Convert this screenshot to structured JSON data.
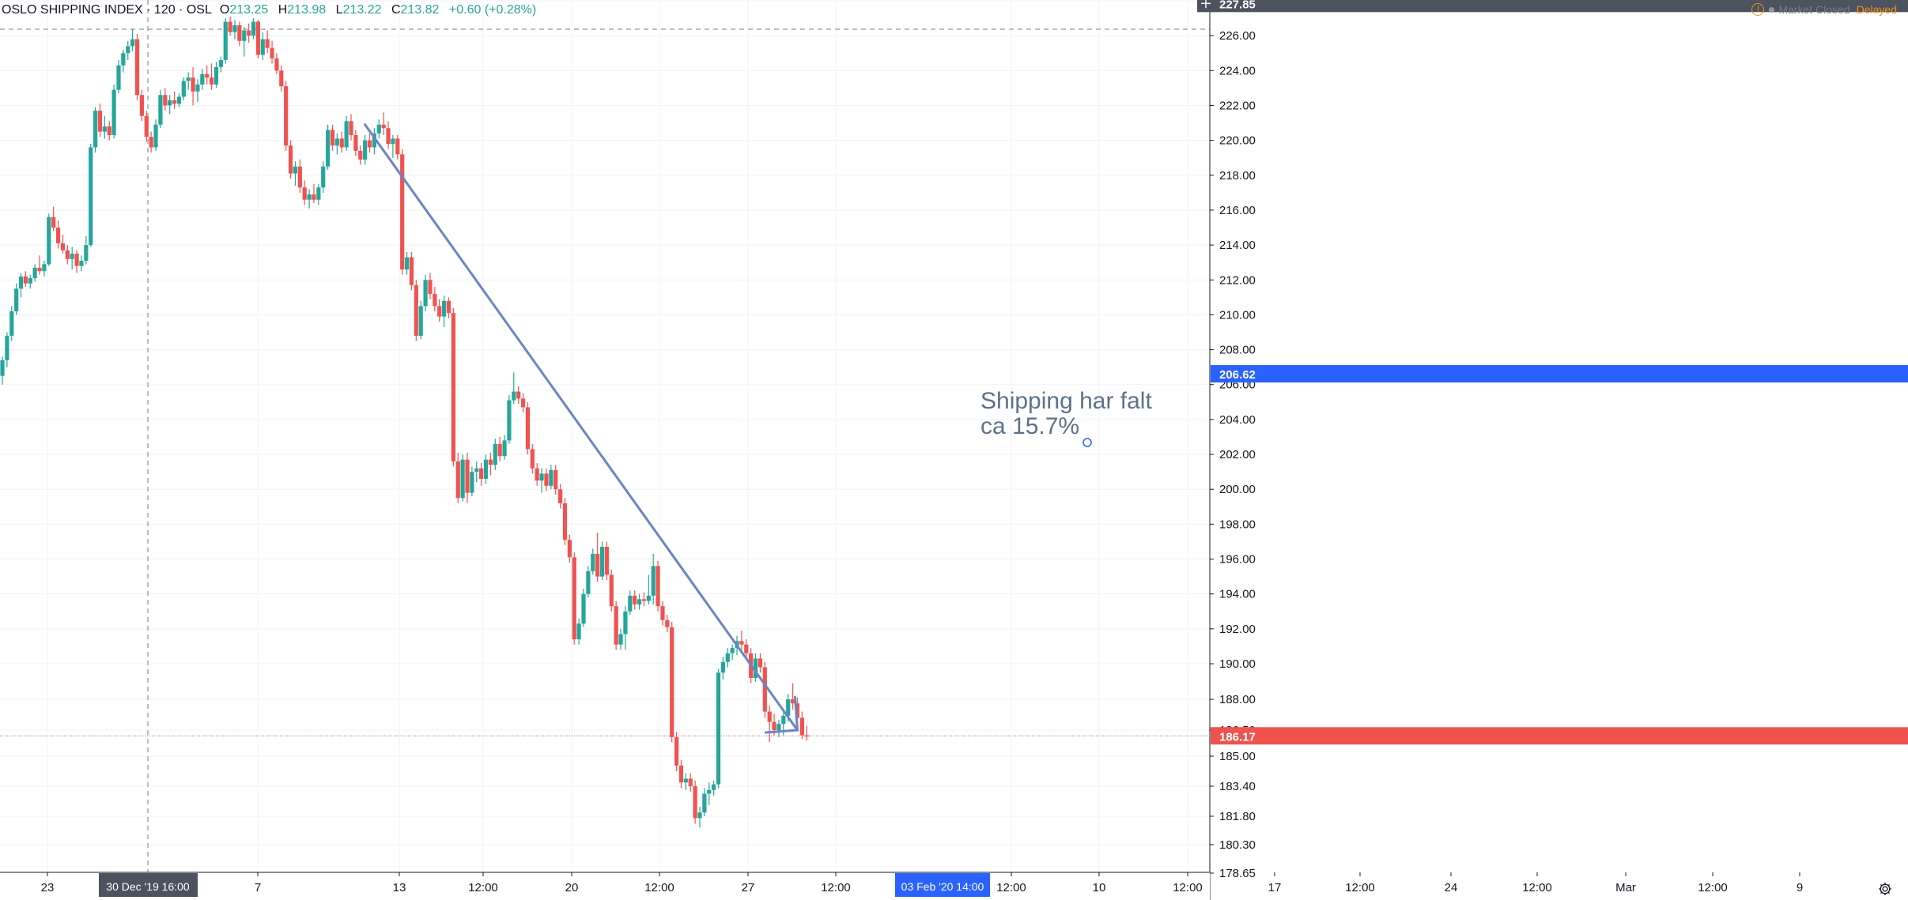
{
  "header": {
    "symbol": "OSLO SHIPPING INDEX · 120 · OSL",
    "ohlc": {
      "o_label": "O",
      "o": "213.25",
      "h_label": "H",
      "h": "213.98",
      "l_label": "L",
      "l": "213.22",
      "c_label": "C",
      "c": "213.82",
      "change": "+0.60 (+0.28%)"
    },
    "status_closed": "Market Closed",
    "status_delayed": "Delayed"
  },
  "colors": {
    "up": "#26a69a",
    "down": "#ef5350",
    "trendline": "#6b84c4",
    "annotation_text": "#5d7289",
    "last_price": "#ef5350",
    "crosshair_label": "#2962ff",
    "axis_label_bg": "#4c525e"
  },
  "icons": {
    "warning": "warning-icon",
    "settings": "gear-icon",
    "crosshair": "plus-icon"
  },
  "chart_data": {
    "type": "candlestick",
    "title": "OSLO SHIPPING INDEX · 120 · OSL",
    "y_axis": {
      "ticks": [
        "178.65",
        "180.30",
        "181.80",
        "183.40",
        "185.00",
        "186.50",
        "188.00",
        "190.00",
        "192.00",
        "194.00",
        "196.00",
        "198.00",
        "200.00",
        "202.00",
        "204.00",
        "206.00",
        "208.00",
        "210.00",
        "212.00",
        "214.00",
        "216.00",
        "218.00",
        "220.00",
        "222.00",
        "224.00",
        "226.00",
        "228.00"
      ],
      "ylim": [
        178.65,
        228.0
      ],
      "price_labels": {
        "crosshair": "227.85",
        "level": "206.62",
        "last": "186.17"
      }
    },
    "x_axis": {
      "ticks": [
        "23",
        "7",
        "13",
        "12:00",
        "20",
        "12:00",
        "27",
        "12:00",
        "12:00",
        "10",
        "12:00",
        "17",
        "12:00",
        "24",
        "12:00",
        "Mar",
        "12:00",
        "9"
      ],
      "crosshair_label": "30 Dec '19   16:00",
      "highlight_label": "03 Feb '20   14:00"
    },
    "candles": [
      {
        "o": 206.5,
        "h": 207.6,
        "l": 206.0,
        "c": 207.4
      },
      {
        "o": 207.4,
        "h": 209.0,
        "l": 207.0,
        "c": 208.8
      },
      {
        "o": 208.8,
        "h": 210.5,
        "l": 208.5,
        "c": 210.2
      },
      {
        "o": 210.2,
        "h": 211.8,
        "l": 210.0,
        "c": 211.5
      },
      {
        "o": 211.5,
        "h": 212.4,
        "l": 211.0,
        "c": 212.2
      },
      {
        "o": 212.2,
        "h": 212.5,
        "l": 211.6,
        "c": 211.8
      },
      {
        "o": 211.8,
        "h": 212.3,
        "l": 211.5,
        "c": 212.1
      },
      {
        "o": 212.1,
        "h": 212.9,
        "l": 211.9,
        "c": 212.7
      },
      {
        "o": 212.7,
        "h": 213.4,
        "l": 212.3,
        "c": 212.5
      },
      {
        "o": 212.5,
        "h": 213.1,
        "l": 212.2,
        "c": 212.9
      },
      {
        "o": 212.9,
        "h": 215.8,
        "l": 212.8,
        "c": 215.6
      },
      {
        "o": 215.6,
        "h": 216.2,
        "l": 214.8,
        "c": 215.0
      },
      {
        "o": 215.0,
        "h": 215.4,
        "l": 213.8,
        "c": 214.1
      },
      {
        "o": 214.1,
        "h": 214.6,
        "l": 213.5,
        "c": 213.7
      },
      {
        "o": 213.7,
        "h": 214.0,
        "l": 212.9,
        "c": 213.2
      },
      {
        "o": 213.2,
        "h": 213.9,
        "l": 212.6,
        "c": 213.5
      },
      {
        "o": 213.5,
        "h": 213.7,
        "l": 212.4,
        "c": 212.8
      },
      {
        "o": 212.8,
        "h": 213.4,
        "l": 212.5,
        "c": 213.1
      },
      {
        "o": 213.1,
        "h": 214.5,
        "l": 212.9,
        "c": 214.0
      },
      {
        "o": 214.0,
        "h": 219.8,
        "l": 213.9,
        "c": 219.6
      },
      {
        "o": 219.6,
        "h": 221.9,
        "l": 219.3,
        "c": 221.7
      },
      {
        "o": 221.7,
        "h": 222.1,
        "l": 220.2,
        "c": 220.5
      },
      {
        "o": 220.5,
        "h": 221.4,
        "l": 220.1,
        "c": 220.8
      },
      {
        "o": 220.8,
        "h": 221.1,
        "l": 220.0,
        "c": 220.3
      },
      {
        "o": 220.3,
        "h": 223.2,
        "l": 220.1,
        "c": 222.9
      },
      {
        "o": 222.9,
        "h": 224.6,
        "l": 222.7,
        "c": 224.3
      },
      {
        "o": 224.3,
        "h": 225.2,
        "l": 223.9,
        "c": 225.0
      },
      {
        "o": 225.0,
        "h": 225.7,
        "l": 224.6,
        "c": 225.4
      },
      {
        "o": 225.4,
        "h": 226.4,
        "l": 225.1,
        "c": 225.8
      },
      {
        "o": 225.8,
        "h": 226.1,
        "l": 222.3,
        "c": 222.6
      },
      {
        "o": 222.6,
        "h": 222.9,
        "l": 221.1,
        "c": 221.4
      },
      {
        "o": 221.4,
        "h": 221.7,
        "l": 219.9,
        "c": 220.2
      },
      {
        "o": 220.2,
        "h": 220.5,
        "l": 219.3,
        "c": 219.6
      },
      {
        "o": 219.6,
        "h": 221.2,
        "l": 219.4,
        "c": 220.9
      },
      {
        "o": 220.9,
        "h": 222.9,
        "l": 220.7,
        "c": 222.6
      },
      {
        "o": 222.6,
        "h": 223.0,
        "l": 221.7,
        "c": 222.0
      },
      {
        "o": 222.0,
        "h": 222.6,
        "l": 221.5,
        "c": 222.3
      },
      {
        "o": 222.3,
        "h": 222.8,
        "l": 221.8,
        "c": 222.1
      },
      {
        "o": 222.1,
        "h": 222.7,
        "l": 221.9,
        "c": 222.5
      },
      {
        "o": 222.5,
        "h": 223.6,
        "l": 222.3,
        "c": 223.4
      },
      {
        "o": 223.4,
        "h": 223.9,
        "l": 222.9,
        "c": 223.6
      },
      {
        "o": 223.6,
        "h": 224.2,
        "l": 222.0,
        "c": 222.8
      },
      {
        "o": 222.8,
        "h": 223.5,
        "l": 222.2,
        "c": 223.2
      },
      {
        "o": 223.2,
        "h": 224.1,
        "l": 222.9,
        "c": 223.8
      },
      {
        "o": 223.8,
        "h": 224.3,
        "l": 223.2,
        "c": 223.6
      },
      {
        "o": 223.6,
        "h": 224.4,
        "l": 222.9,
        "c": 223.2
      },
      {
        "o": 223.2,
        "h": 224.5,
        "l": 223.0,
        "c": 224.2
      },
      {
        "o": 224.2,
        "h": 224.8,
        "l": 223.9,
        "c": 224.6
      },
      {
        "o": 224.6,
        "h": 227.0,
        "l": 224.4,
        "c": 226.8
      },
      {
        "o": 226.8,
        "h": 227.1,
        "l": 226.0,
        "c": 226.2
      },
      {
        "o": 226.2,
        "h": 226.9,
        "l": 225.8,
        "c": 226.6
      },
      {
        "o": 226.6,
        "h": 226.8,
        "l": 225.4,
        "c": 225.7
      },
      {
        "o": 225.7,
        "h": 226.5,
        "l": 224.8,
        "c": 226.3
      },
      {
        "o": 226.3,
        "h": 226.7,
        "l": 225.6,
        "c": 226.0
      },
      {
        "o": 226.0,
        "h": 227.0,
        "l": 225.8,
        "c": 226.8
      },
      {
        "o": 226.8,
        "h": 226.9,
        "l": 224.7,
        "c": 224.9
      },
      {
        "o": 224.9,
        "h": 226.2,
        "l": 224.6,
        "c": 225.8
      },
      {
        "o": 225.8,
        "h": 226.3,
        "l": 225.0,
        "c": 225.3
      },
      {
        "o": 225.3,
        "h": 225.7,
        "l": 224.4,
        "c": 224.7
      },
      {
        "o": 224.7,
        "h": 225.0,
        "l": 223.8,
        "c": 224.0
      },
      {
        "o": 224.0,
        "h": 224.3,
        "l": 222.8,
        "c": 223.1
      },
      {
        "o": 223.1,
        "h": 223.4,
        "l": 219.4,
        "c": 219.7
      },
      {
        "o": 219.7,
        "h": 220.0,
        "l": 217.8,
        "c": 218.1
      },
      {
        "o": 218.1,
        "h": 218.8,
        "l": 217.4,
        "c": 218.5
      },
      {
        "o": 218.5,
        "h": 218.9,
        "l": 217.0,
        "c": 217.3
      },
      {
        "o": 217.3,
        "h": 217.7,
        "l": 216.3,
        "c": 216.6
      },
      {
        "o": 216.6,
        "h": 217.2,
        "l": 216.1,
        "c": 216.9
      },
      {
        "o": 216.9,
        "h": 217.5,
        "l": 216.4,
        "c": 216.6
      },
      {
        "o": 216.6,
        "h": 217.5,
        "l": 216.3,
        "c": 217.3
      },
      {
        "o": 217.3,
        "h": 218.8,
        "l": 217.0,
        "c": 218.5
      },
      {
        "o": 218.5,
        "h": 220.9,
        "l": 218.3,
        "c": 220.6
      },
      {
        "o": 220.6,
        "h": 220.9,
        "l": 219.4,
        "c": 219.7
      },
      {
        "o": 219.7,
        "h": 220.4,
        "l": 219.2,
        "c": 220.1
      },
      {
        "o": 220.1,
        "h": 220.5,
        "l": 219.3,
        "c": 219.6
      },
      {
        "o": 219.6,
        "h": 221.4,
        "l": 219.4,
        "c": 221.1
      },
      {
        "o": 221.1,
        "h": 221.5,
        "l": 220.0,
        "c": 220.3
      },
      {
        "o": 220.3,
        "h": 220.6,
        "l": 219.1,
        "c": 219.4
      },
      {
        "o": 219.4,
        "h": 219.7,
        "l": 218.6,
        "c": 218.9
      },
      {
        "o": 218.9,
        "h": 220.3,
        "l": 218.6,
        "c": 220.0
      },
      {
        "o": 220.0,
        "h": 220.6,
        "l": 219.3,
        "c": 219.6
      },
      {
        "o": 219.6,
        "h": 220.7,
        "l": 219.2,
        "c": 220.4
      },
      {
        "o": 220.4,
        "h": 221.2,
        "l": 220.1,
        "c": 220.9
      },
      {
        "o": 220.9,
        "h": 221.6,
        "l": 220.3,
        "c": 220.7
      },
      {
        "o": 220.7,
        "h": 221.1,
        "l": 219.5,
        "c": 219.8
      },
      {
        "o": 219.8,
        "h": 220.3,
        "l": 219.0,
        "c": 220.1
      },
      {
        "o": 220.1,
        "h": 220.3,
        "l": 218.9,
        "c": 219.2
      },
      {
        "o": 219.2,
        "h": 219.5,
        "l": 212.3,
        "c": 212.6
      },
      {
        "o": 212.6,
        "h": 213.6,
        "l": 212.3,
        "c": 213.3
      },
      {
        "o": 213.3,
        "h": 213.6,
        "l": 211.4,
        "c": 211.7
      },
      {
        "o": 211.7,
        "h": 212.0,
        "l": 208.5,
        "c": 208.8
      },
      {
        "o": 208.8,
        "h": 210.8,
        "l": 208.6,
        "c": 210.5
      },
      {
        "o": 210.5,
        "h": 212.3,
        "l": 210.2,
        "c": 212.0
      },
      {
        "o": 212.0,
        "h": 212.4,
        "l": 210.9,
        "c": 211.2
      },
      {
        "o": 211.2,
        "h": 211.6,
        "l": 210.2,
        "c": 210.5
      },
      {
        "o": 210.5,
        "h": 210.9,
        "l": 209.6,
        "c": 209.9
      },
      {
        "o": 209.9,
        "h": 211.1,
        "l": 209.3,
        "c": 210.8
      },
      {
        "o": 210.8,
        "h": 211.0,
        "l": 209.8,
        "c": 210.1
      },
      {
        "o": 210.1,
        "h": 210.4,
        "l": 201.3,
        "c": 201.6
      },
      {
        "o": 201.6,
        "h": 202.1,
        "l": 199.2,
        "c": 199.5
      },
      {
        "o": 199.5,
        "h": 202.0,
        "l": 199.3,
        "c": 201.7
      },
      {
        "o": 201.7,
        "h": 202.1,
        "l": 199.2,
        "c": 199.8
      },
      {
        "o": 199.8,
        "h": 201.3,
        "l": 199.6,
        "c": 201.0
      },
      {
        "o": 201.0,
        "h": 201.6,
        "l": 200.4,
        "c": 201.2
      },
      {
        "o": 201.2,
        "h": 201.5,
        "l": 200.2,
        "c": 200.6
      },
      {
        "o": 200.6,
        "h": 202.0,
        "l": 200.3,
        "c": 201.7
      },
      {
        "o": 201.7,
        "h": 202.1,
        "l": 200.8,
        "c": 201.4
      },
      {
        "o": 201.4,
        "h": 202.9,
        "l": 201.1,
        "c": 202.6
      },
      {
        "o": 202.6,
        "h": 203.0,
        "l": 201.6,
        "c": 201.9
      },
      {
        "o": 201.9,
        "h": 203.1,
        "l": 201.7,
        "c": 202.8
      },
      {
        "o": 202.8,
        "h": 205.4,
        "l": 202.6,
        "c": 205.1
      },
      {
        "o": 205.1,
        "h": 206.7,
        "l": 204.9,
        "c": 205.6
      },
      {
        "o": 205.6,
        "h": 205.9,
        "l": 204.9,
        "c": 205.2
      },
      {
        "o": 205.2,
        "h": 205.5,
        "l": 204.4,
        "c": 204.7
      },
      {
        "o": 204.7,
        "h": 205.0,
        "l": 202.0,
        "c": 202.3
      },
      {
        "o": 202.3,
        "h": 202.6,
        "l": 200.9,
        "c": 201.2
      },
      {
        "o": 201.2,
        "h": 201.5,
        "l": 200.2,
        "c": 200.5
      },
      {
        "o": 200.5,
        "h": 201.2,
        "l": 199.8,
        "c": 200.9
      },
      {
        "o": 200.9,
        "h": 201.2,
        "l": 199.9,
        "c": 200.2
      },
      {
        "o": 200.2,
        "h": 201.4,
        "l": 200.0,
        "c": 201.1
      },
      {
        "o": 201.1,
        "h": 201.4,
        "l": 199.7,
        "c": 200.0
      },
      {
        "o": 200.0,
        "h": 200.3,
        "l": 198.9,
        "c": 199.2
      },
      {
        "o": 199.2,
        "h": 199.5,
        "l": 196.8,
        "c": 197.1
      },
      {
        "o": 197.1,
        "h": 197.4,
        "l": 195.8,
        "c": 196.1
      },
      {
        "o": 196.1,
        "h": 196.4,
        "l": 191.1,
        "c": 191.4
      },
      {
        "o": 191.4,
        "h": 192.6,
        "l": 191.1,
        "c": 192.3
      },
      {
        "o": 192.3,
        "h": 194.3,
        "l": 192.1,
        "c": 194.0
      },
      {
        "o": 194.0,
        "h": 195.6,
        "l": 193.8,
        "c": 195.3
      },
      {
        "o": 195.3,
        "h": 196.6,
        "l": 195.1,
        "c": 196.3
      },
      {
        "o": 196.3,
        "h": 197.5,
        "l": 194.7,
        "c": 195.0
      },
      {
        "o": 195.0,
        "h": 197.0,
        "l": 194.8,
        "c": 196.7
      },
      {
        "o": 196.7,
        "h": 197.0,
        "l": 194.8,
        "c": 195.1
      },
      {
        "o": 195.1,
        "h": 195.4,
        "l": 193.0,
        "c": 193.3
      },
      {
        "o": 193.3,
        "h": 193.6,
        "l": 190.8,
        "c": 191.1
      },
      {
        "o": 191.1,
        "h": 192.0,
        "l": 190.8,
        "c": 191.7
      },
      {
        "o": 191.7,
        "h": 193.3,
        "l": 190.8,
        "c": 193.0
      },
      {
        "o": 193.0,
        "h": 194.2,
        "l": 192.8,
        "c": 193.9
      },
      {
        "o": 193.9,
        "h": 194.2,
        "l": 193.1,
        "c": 193.4
      },
      {
        "o": 193.4,
        "h": 194.0,
        "l": 193.1,
        "c": 193.7
      },
      {
        "o": 193.7,
        "h": 194.1,
        "l": 193.3,
        "c": 193.6
      },
      {
        "o": 193.6,
        "h": 195.1,
        "l": 193.4,
        "c": 193.9
      },
      {
        "o": 193.9,
        "h": 196.3,
        "l": 193.4,
        "c": 195.6
      },
      {
        "o": 195.6,
        "h": 195.9,
        "l": 193.0,
        "c": 193.3
      },
      {
        "o": 193.3,
        "h": 193.6,
        "l": 192.2,
        "c": 192.5
      },
      {
        "o": 192.5,
        "h": 192.8,
        "l": 191.8,
        "c": 192.1
      },
      {
        "o": 192.1,
        "h": 192.4,
        "l": 185.8,
        "c": 186.1
      },
      {
        "o": 186.1,
        "h": 186.4,
        "l": 184.2,
        "c": 184.5
      },
      {
        "o": 184.5,
        "h": 184.8,
        "l": 183.3,
        "c": 183.6
      },
      {
        "o": 183.6,
        "h": 184.1,
        "l": 183.2,
        "c": 183.8
      },
      {
        "o": 183.8,
        "h": 184.1,
        "l": 183.1,
        "c": 183.4
      },
      {
        "o": 183.4,
        "h": 183.7,
        "l": 181.4,
        "c": 181.7
      },
      {
        "o": 181.7,
        "h": 182.3,
        "l": 181.2,
        "c": 182.0
      },
      {
        "o": 182.0,
        "h": 183.3,
        "l": 181.8,
        "c": 183.0
      },
      {
        "o": 183.0,
        "h": 183.6,
        "l": 182.4,
        "c": 183.2
      },
      {
        "o": 183.2,
        "h": 183.7,
        "l": 182.9,
        "c": 183.5
      },
      {
        "o": 183.5,
        "h": 189.7,
        "l": 183.3,
        "c": 189.5
      },
      {
        "o": 189.5,
        "h": 190.4,
        "l": 189.1,
        "c": 190.1
      },
      {
        "o": 190.1,
        "h": 190.9,
        "l": 189.8,
        "c": 190.6
      },
      {
        "o": 190.6,
        "h": 191.1,
        "l": 190.2,
        "c": 190.9
      },
      {
        "o": 190.9,
        "h": 191.6,
        "l": 190.5,
        "c": 191.3
      },
      {
        "o": 191.3,
        "h": 191.9,
        "l": 190.8,
        "c": 191.1
      },
      {
        "o": 191.1,
        "h": 191.4,
        "l": 190.3,
        "c": 190.6
      },
      {
        "o": 190.6,
        "h": 190.9,
        "l": 188.9,
        "c": 189.2
      },
      {
        "o": 189.2,
        "h": 190.6,
        "l": 189.0,
        "c": 190.3
      },
      {
        "o": 190.3,
        "h": 190.6,
        "l": 189.5,
        "c": 189.8
      },
      {
        "o": 189.8,
        "h": 190.1,
        "l": 187.1,
        "c": 187.4
      },
      {
        "o": 187.4,
        "h": 187.7,
        "l": 185.8,
        "c": 186.9
      },
      {
        "o": 186.9,
        "h": 187.3,
        "l": 186.2,
        "c": 186.5
      },
      {
        "o": 186.5,
        "h": 187.0,
        "l": 186.1,
        "c": 186.8
      },
      {
        "o": 186.8,
        "h": 187.4,
        "l": 186.2,
        "c": 187.2
      },
      {
        "o": 187.2,
        "h": 188.3,
        "l": 186.9,
        "c": 188.0
      },
      {
        "o": 188.0,
        "h": 188.9,
        "l": 187.5,
        "c": 187.8
      },
      {
        "o": 187.8,
        "h": 188.1,
        "l": 186.9,
        "c": 187.1
      },
      {
        "o": 187.1,
        "h": 187.4,
        "l": 186.0,
        "c": 186.2
      },
      {
        "o": 186.2,
        "h": 186.7,
        "l": 185.9,
        "c": 186.17
      }
    ],
    "annotations": [
      {
        "type": "trendline",
        "from": {
          "bar": 78,
          "price": 220.9
        },
        "to": {
          "bar": 171,
          "price": 186.5
        }
      },
      {
        "type": "text",
        "lines": [
          "Shipping har falt",
          "ca 15.7%"
        ]
      },
      {
        "type": "horizontal_level",
        "price": 186.17
      }
    ]
  }
}
